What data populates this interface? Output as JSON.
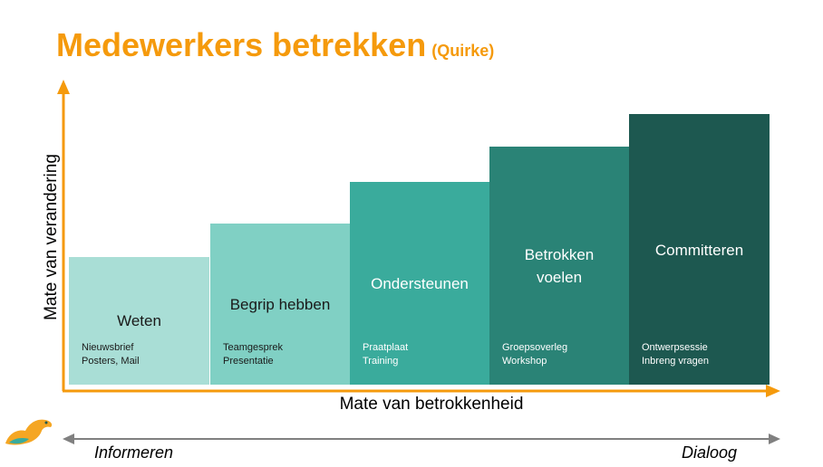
{
  "title": {
    "main": "Medewerkers betrekken",
    "sub": "(Quirke)"
  },
  "axes": {
    "y_label": "Mate van verandering",
    "x_label": "Mate van betrokkenheid",
    "color": "#f59a0c"
  },
  "steps": [
    {
      "label": "Weten",
      "items": [
        "Nieuwsbrief",
        "Posters, Mail"
      ],
      "color": "#a9ded6"
    },
    {
      "label": "Begrip hebben",
      "items": [
        "Teamgesprek",
        "Presentatie"
      ],
      "color": "#80d0c4"
    },
    {
      "label": "Ondersteunen",
      "items": [
        "Praatplaat",
        "Training"
      ],
      "color": "#3aab9c"
    },
    {
      "label": "Betrokken voelen",
      "items": [
        "Groepsoverleg",
        "Workshop"
      ],
      "color": "#2a8376"
    },
    {
      "label": "Committeren",
      "items": [
        "Ontwerpsessie",
        "Inbreng vragen"
      ],
      "color": "#1d5850"
    }
  ],
  "scale": {
    "left": "Informeren",
    "right": "Dialoog",
    "color": "#808080"
  },
  "logo": {
    "icon": "otter-logo-icon"
  }
}
